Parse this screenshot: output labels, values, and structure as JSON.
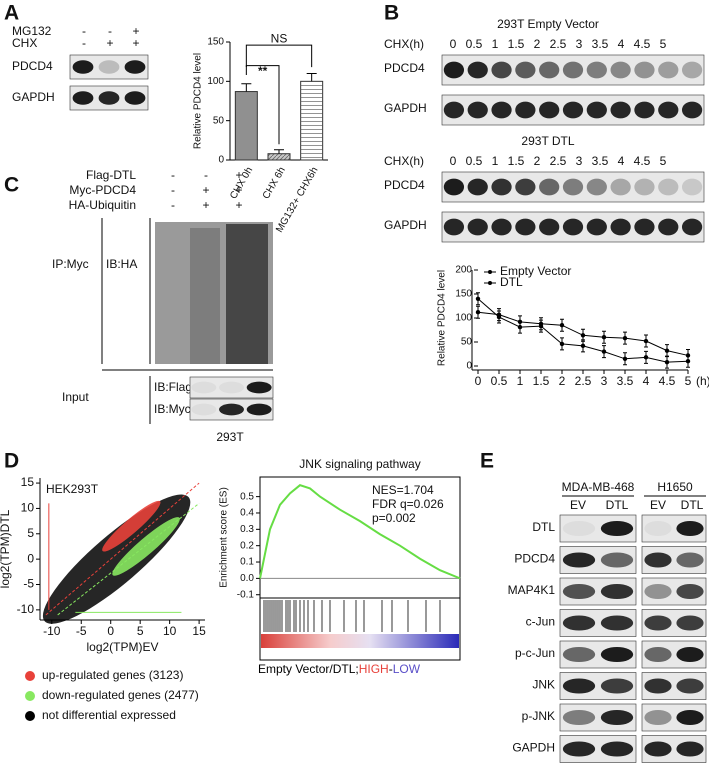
{
  "panels": {
    "letters": [
      "A",
      "B",
      "C",
      "D",
      "E"
    ],
    "a": {
      "treatments": [
        {
          "name": "MG132",
          "signs": [
            "-",
            "-",
            "+"
          ]
        },
        {
          "name": "CHX",
          "signs": [
            "-",
            "+",
            "+"
          ]
        }
      ],
      "rows": [
        "PDCD4",
        "GAPDH"
      ]
    },
    "b": {
      "blots": [
        {
          "title": "293T Empty Vector",
          "time_label": "CHX(h)",
          "times": [
            "0",
            "0.5",
            "1",
            "1.5",
            "2",
            "2.5",
            "3",
            "3.5",
            "4",
            "4.5",
            "5"
          ],
          "rows": [
            "PDCD4",
            "GAPDH"
          ]
        },
        {
          "title": "293T DTL",
          "time_label": "CHX(h)",
          "times": [
            "0",
            "0.5",
            "1",
            "1.5",
            "2",
            "2.5",
            "3",
            "3.5",
            "4",
            "4.5",
            "5"
          ],
          "rows": [
            "PDCD4",
            "GAPDH"
          ]
        }
      ]
    },
    "c": {
      "treatments": [
        {
          "name": "Flag-DTL",
          "signs": [
            "-",
            "-",
            "+"
          ]
        },
        {
          "name": "Myc-PDCD4",
          "signs": [
            "-",
            "+",
            "+"
          ]
        },
        {
          "name": "HA-Ubiquitin",
          "signs": [
            "-",
            "+",
            "+"
          ]
        }
      ],
      "ip": "IP:Myc",
      "ip_blot": "IB:HA",
      "input": "Input",
      "input_blots": [
        "IB:Flag",
        "IB:Myc"
      ],
      "cell_line": "293T"
    },
    "e": {
      "cell_lines": [
        "MDA-MB-468",
        "H1650"
      ],
      "lanes": [
        "EV",
        "DTL",
        "EV",
        "DTL"
      ],
      "rows": [
        "DTL",
        "PDCD4",
        "MAP4K1",
        "c-Jun",
        "p-c-Jun",
        "JNK",
        "p-JNK",
        "GAPDH"
      ]
    }
  },
  "chart_data": [
    {
      "type": "bar",
      "y_label": "Relative PDCD4 level",
      "categories": [
        "CHX 0h",
        "CHX 6h",
        "MG132+ CHX6h"
      ],
      "values": [
        87,
        8,
        100
      ],
      "errors": [
        10,
        5,
        10
      ],
      "colors": [
        "#909090",
        "#c8c8c8",
        "#ffffff"
      ],
      "ylim": [
        0,
        150
      ],
      "yticks": [
        0,
        50,
        100,
        150
      ],
      "annotations": [
        "**",
        "NS"
      ]
    },
    {
      "type": "line",
      "y_label": "Relative PDCD4 level",
      "x_label": "(h)",
      "x": [
        0,
        0.5,
        1,
        1.5,
        2,
        2.5,
        3,
        3.5,
        4,
        4.5,
        5
      ],
      "series": [
        {
          "name": "Empty Vector",
          "color": "#000000",
          "values": [
            112,
            107,
            92,
            88,
            85,
            64,
            60,
            58,
            52,
            32,
            22
          ]
        },
        {
          "name": "DTL",
          "color": "#000000",
          "values": [
            140,
            102,
            81,
            83,
            46,
            42,
            30,
            15,
            18,
            8,
            10
          ]
        }
      ],
      "xlim": [
        0,
        5
      ],
      "xticks": [
        0,
        0.5,
        1,
        1.5,
        2,
        2.5,
        3,
        3.5,
        4,
        4.5,
        5
      ],
      "ylim": [
        0,
        200
      ],
      "yticks": [
        0,
        50,
        100,
        150,
        200
      ],
      "legend": "upper center"
    },
    {
      "type": "scatter",
      "title": "HEK293T",
      "x_label": "log2(TPM)EV",
      "y_label": "log2(TPM)DTL",
      "xlim": [
        -12,
        16
      ],
      "ylim": [
        -12,
        16
      ],
      "xticks": [
        -10,
        -5,
        0,
        5,
        10,
        15
      ],
      "yticks": [
        -10,
        -5,
        0,
        5,
        10,
        15
      ],
      "series": [
        {
          "name": "up-regulated genes (3123)",
          "color": "#e8413a"
        },
        {
          "name": "down-regulated genes (2477)",
          "color": "#88e860"
        },
        {
          "name": "not differential expressed",
          "color": "#000000"
        }
      ]
    },
    {
      "type": "line",
      "title": "JNK signaling pathway",
      "y_label": "Enrichment score (ES)",
      "x": [
        0,
        0.05,
        0.1,
        0.15,
        0.2,
        0.25,
        0.3,
        0.4,
        0.5,
        0.6,
        0.7,
        0.8,
        0.9,
        1
      ],
      "values": [
        0,
        0.3,
        0.45,
        0.52,
        0.57,
        0.55,
        0.5,
        0.42,
        0.35,
        0.27,
        0.2,
        0.12,
        0.05,
        0
      ],
      "color": "#66dd44",
      "xlim": [
        0,
        1
      ],
      "ylim": [
        -0.12,
        0.62
      ],
      "yticks": [
        -0.1,
        {
          "value": 0,
          "label": "0.0"
        },
        0.1,
        0.2,
        0.3,
        0.4,
        0.5
      ],
      "annotations": [
        "NES=1.704",
        "FDR q=0.026",
        "p=0.002"
      ],
      "footer": [
        "Empty Vector/DTL;",
        "HIGH",
        "-",
        "LOW"
      ],
      "footer_colors": [
        "#000000",
        "#e8413a",
        "#000000",
        "#5a4fc8"
      ]
    }
  ]
}
